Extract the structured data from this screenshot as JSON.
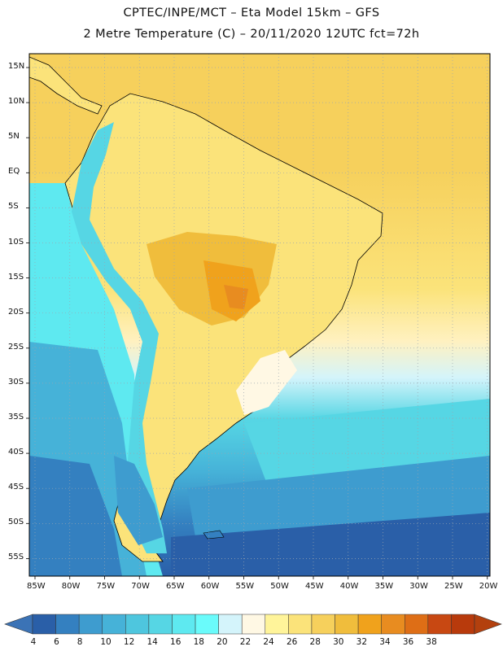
{
  "header": {
    "title_line1": "CPTEC/INPE/MCT –  Eta Model 15km – GFS",
    "title_line2": "2 Metre Temperature (C) – 20/11/2020 12UTC fct=72h"
  },
  "axes": {
    "lat_labels": [
      "15N",
      "10N",
      "5N",
      "EQ",
      "5S",
      "10S",
      "15S",
      "20S",
      "25S",
      "30S",
      "35S",
      "40S",
      "45S",
      "50S",
      "55S"
    ],
    "lon_labels": [
      "85W",
      "80W",
      "75W",
      "70W",
      "65W",
      "60W",
      "55W",
      "50W",
      "45W",
      "40W",
      "35W",
      "30W",
      "25W",
      "20W"
    ]
  },
  "colorbar": {
    "labels": [
      "4",
      "6",
      "8",
      "10",
      "12",
      "14",
      "16",
      "18",
      "20",
      "22",
      "24",
      "26",
      "28",
      "30",
      "32",
      "34",
      "36",
      "38"
    ],
    "colors": [
      "#2a5fa8",
      "#3480c0",
      "#3e9ccf",
      "#46b2d8",
      "#4ec6de",
      "#56d6e4",
      "#5ee9f0",
      "#6afbfb",
      "#d4f4fb",
      "#fff8e4",
      "#fff49a",
      "#fbe37a",
      "#f6d05c",
      "#f0bd3c",
      "#f0a21c",
      "#e88c20",
      "#de6e16",
      "#c84812",
      "#b83a0c"
    ],
    "min_color": "#3b73b6",
    "max_color": "#b3400e"
  }
}
